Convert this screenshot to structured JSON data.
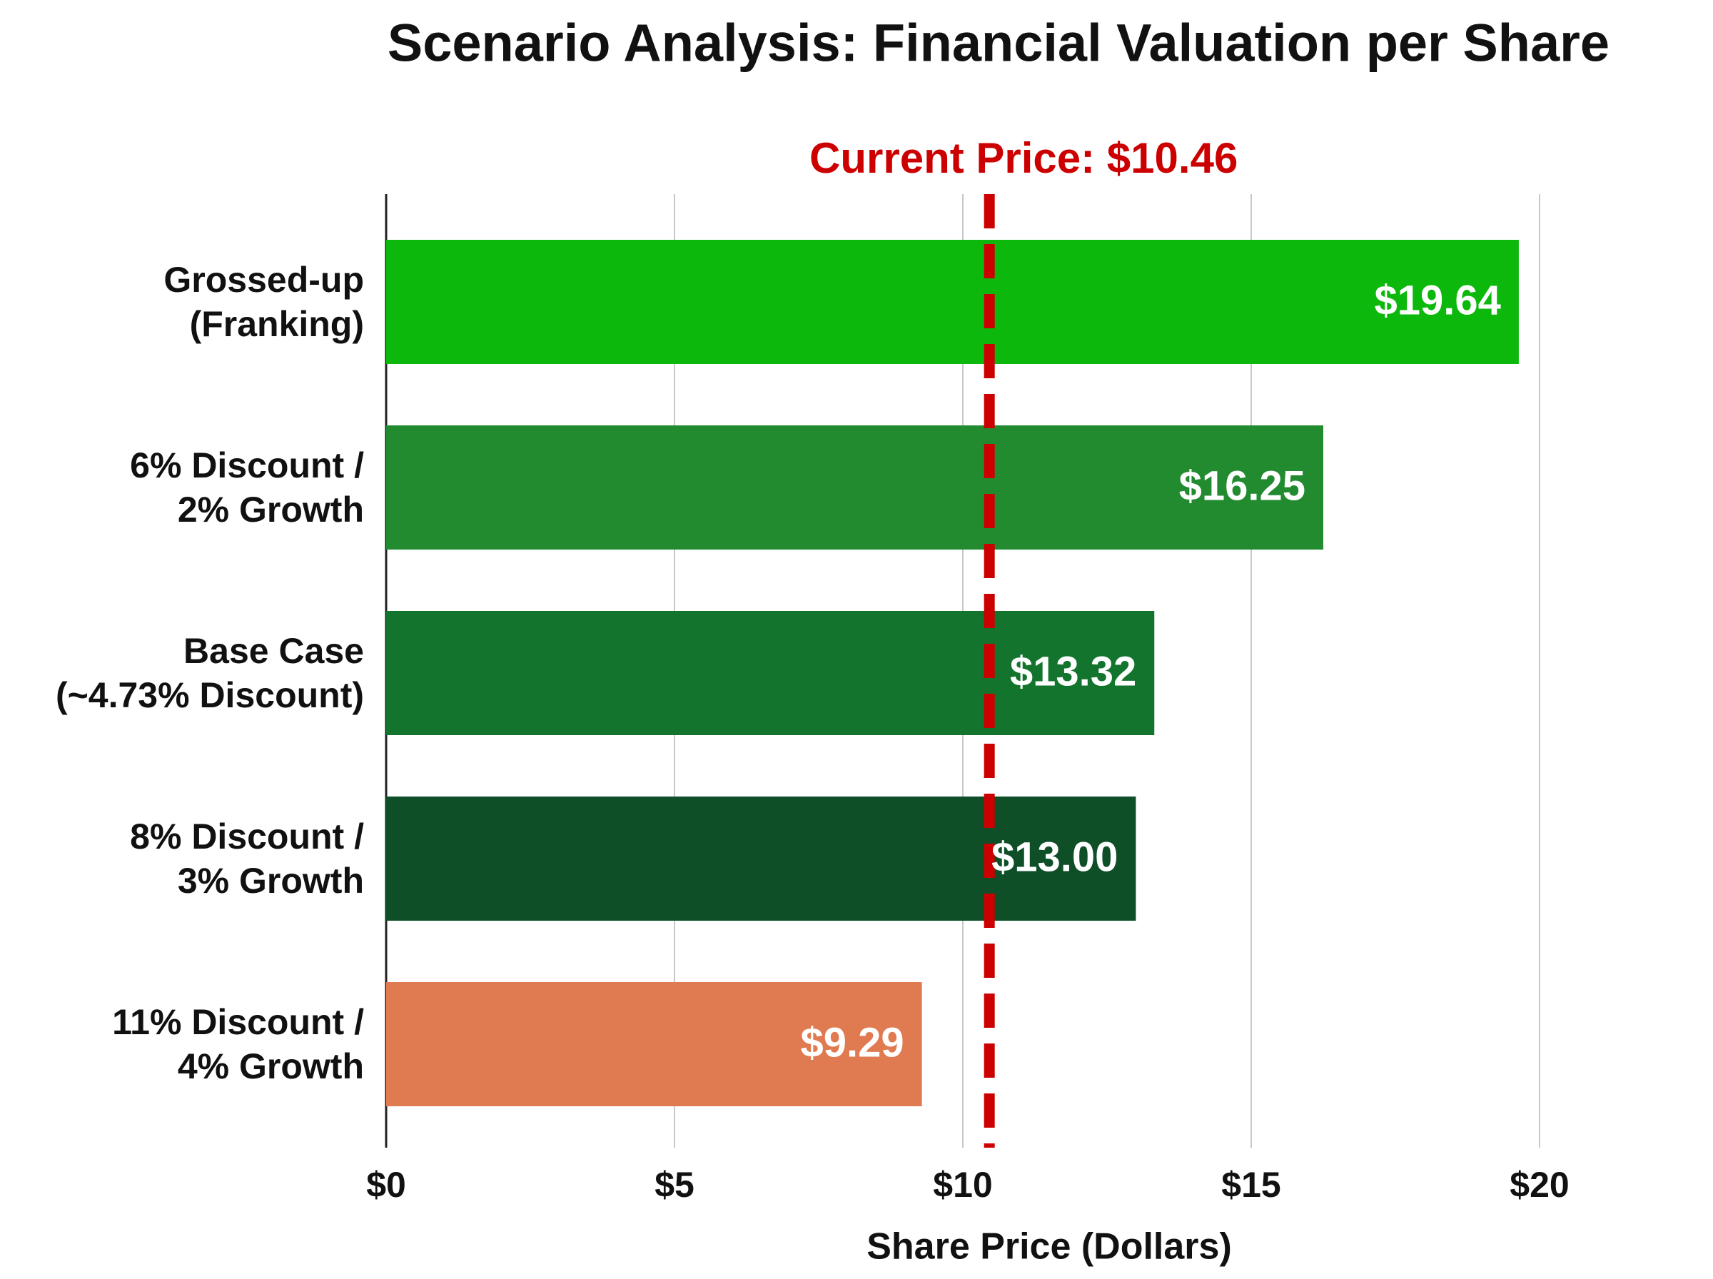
{
  "chart_data": {
    "type": "barh",
    "title": "Scenario Analysis: Financial Valuation per Share",
    "categories": [
      "Grossed-up\n(Franking)",
      "6% Discount /\n2% Growth",
      "Base Case\n(~4.73% Discount)",
      "8% Discount /\n3% Growth",
      "11% Discount /\n4% Growth"
    ],
    "values": [
      19.64,
      16.25,
      13.32,
      13.0,
      9.29
    ],
    "value_labels": [
      "$19.64",
      "$16.25",
      "$13.32",
      "$13.00",
      "$9.29"
    ],
    "colors": [
      "#0cb80c",
      "#228b30",
      "#13742e",
      "#0f4f28",
      "#e07a50"
    ],
    "xlabel": "Share Price (Dollars)",
    "xlim": [
      0,
      20
    ],
    "xticks": [
      {
        "value": 0,
        "label": "$0"
      },
      {
        "value": 5,
        "label": "$5"
      },
      {
        "value": 10,
        "label": "$10"
      },
      {
        "value": 15,
        "label": "$15"
      },
      {
        "value": 20,
        "label": "$20"
      }
    ],
    "grid": true,
    "reference_line": {
      "value": 10.46,
      "label": "Current Price: $10.46",
      "color": "#cc0000"
    }
  }
}
